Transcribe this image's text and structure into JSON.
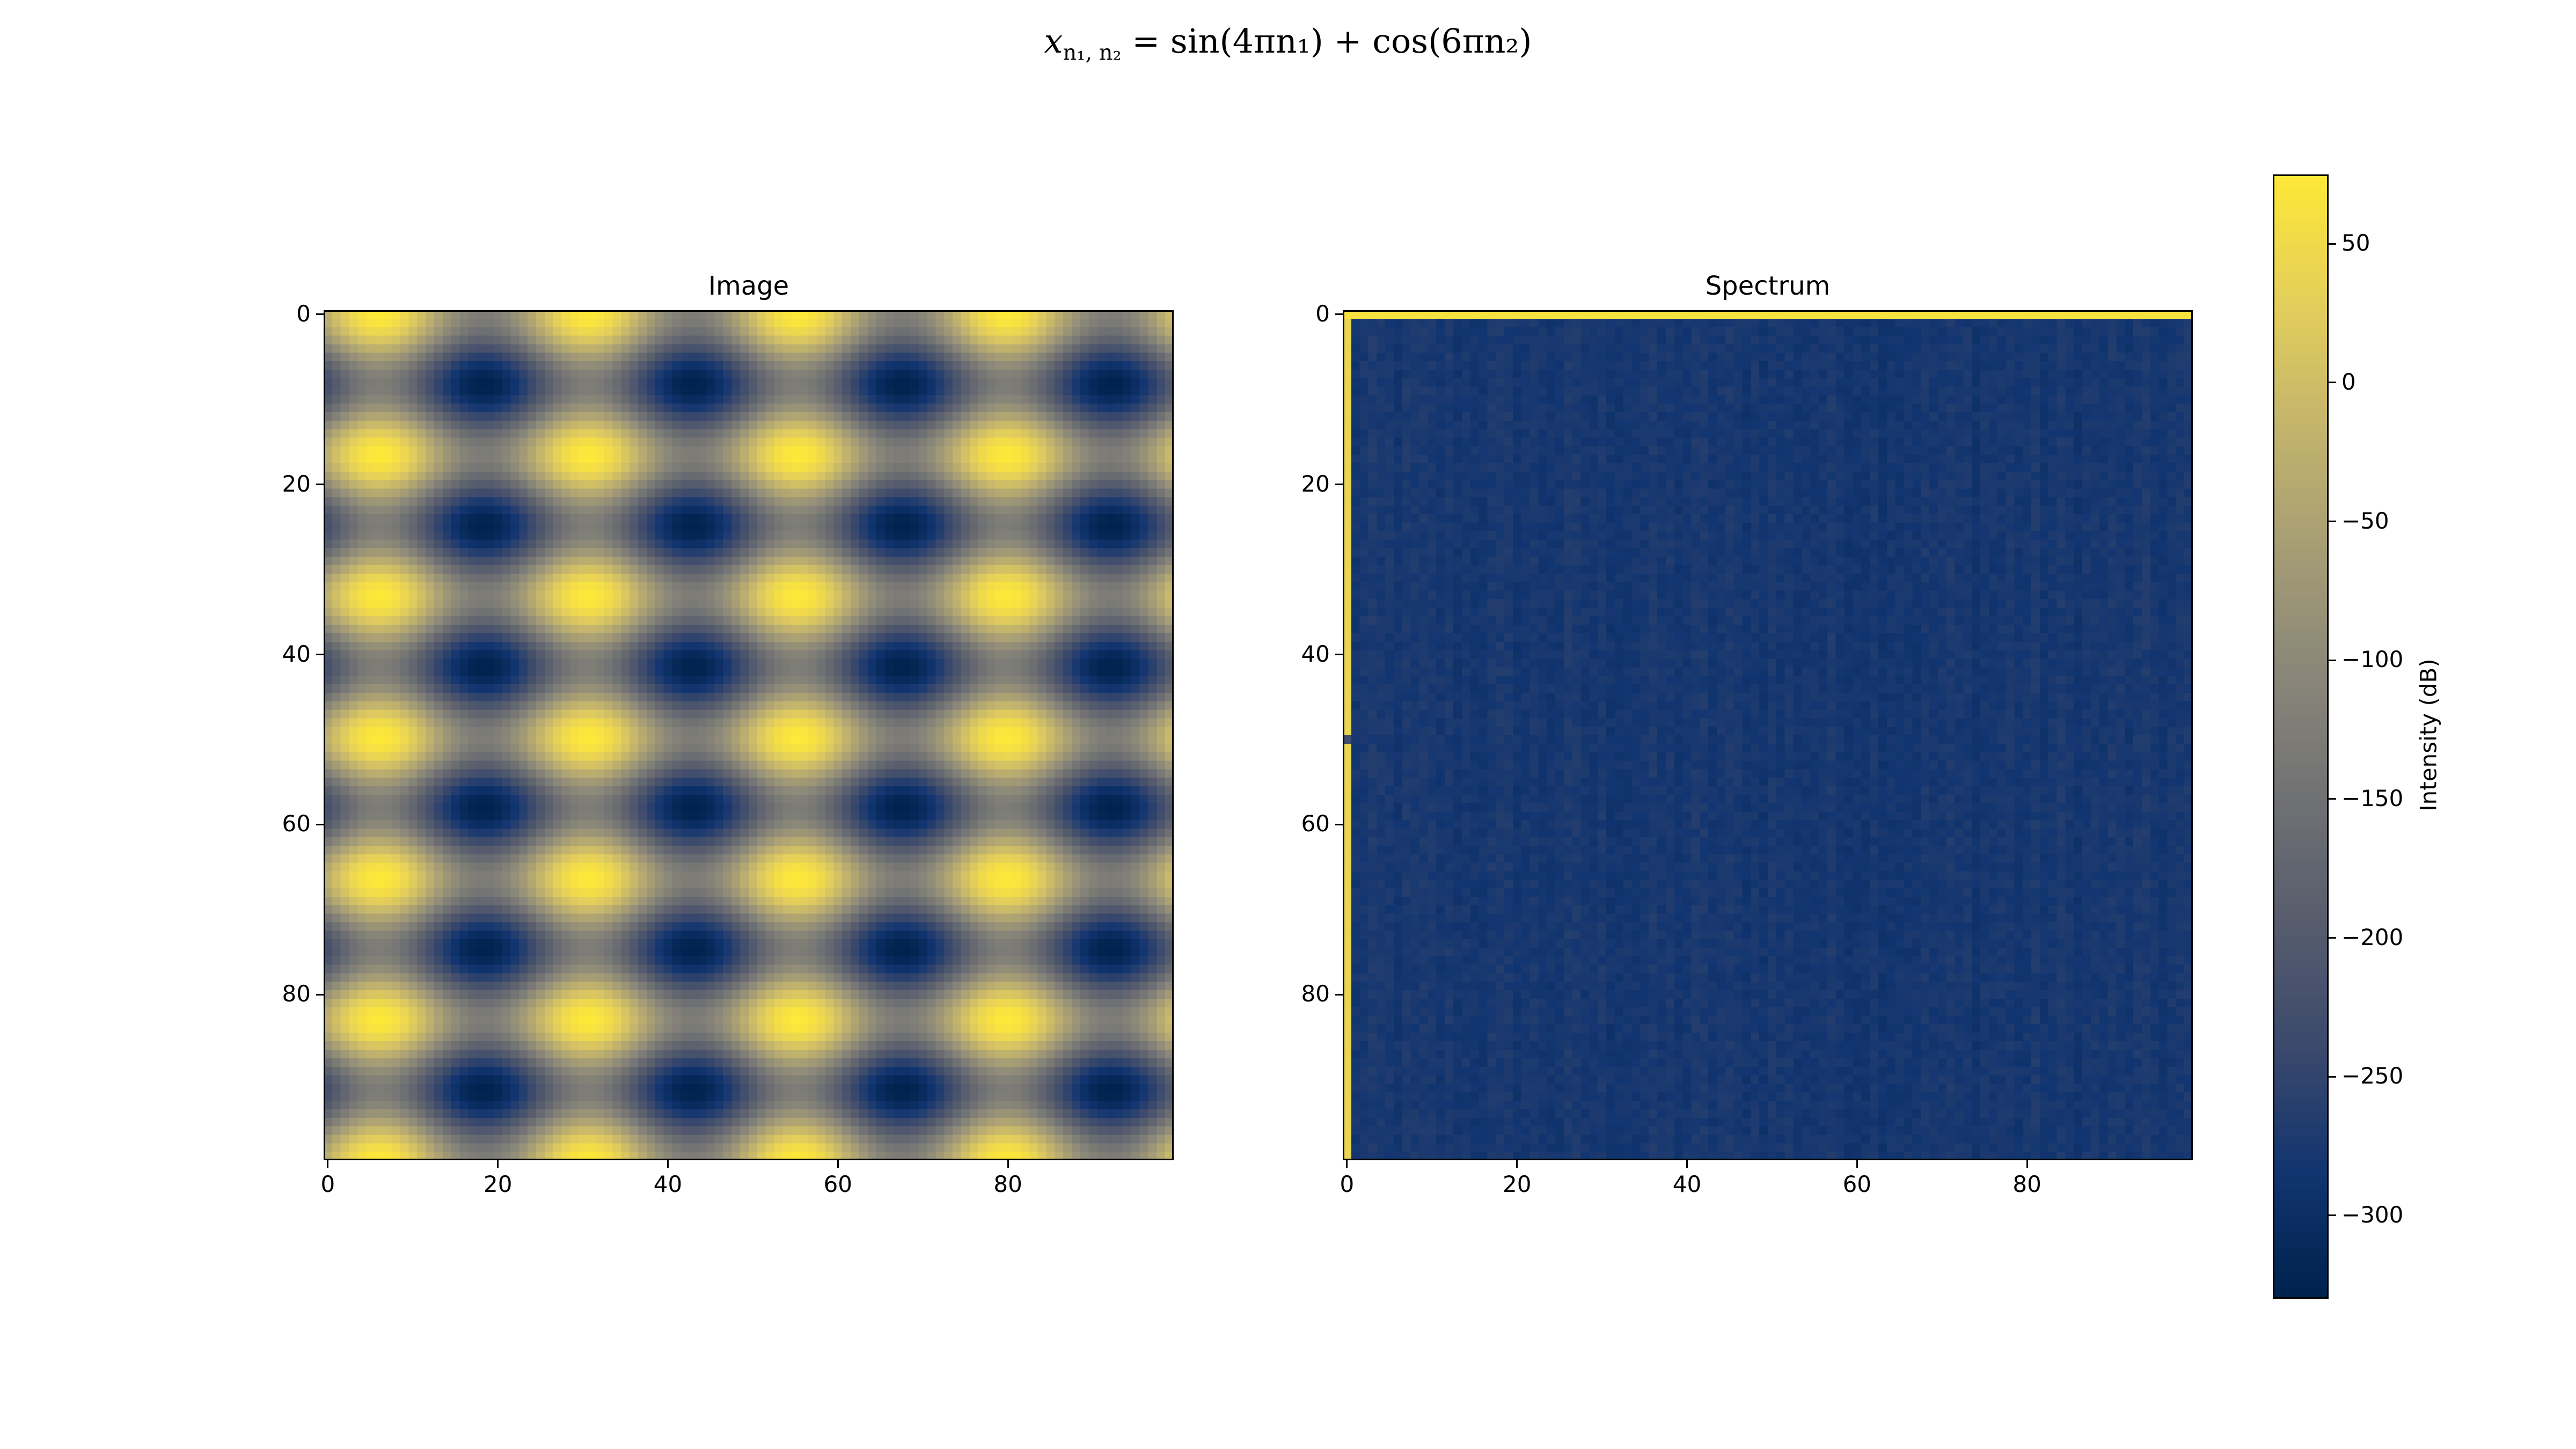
{
  "suptitle": {
    "lhs": "x",
    "lhs_sub": "n₁, n₂",
    "rhs": "= sin(4πn₁) + cos(6πn₂)"
  },
  "chart_data": [
    {
      "type": "heatmap",
      "title": "Image",
      "grid": false,
      "size": [
        100,
        100
      ],
      "function": "sin(4πn₁) + cos(6πn₂)",
      "x_ticks": [
        "0",
        "20",
        "40",
        "60",
        "80"
      ],
      "y_ticks": [
        "0",
        "20",
        "40",
        "60",
        "80"
      ],
      "xlim": [
        -0.5,
        99.5
      ],
      "ylim": [
        99.5,
        -0.5
      ],
      "colormap": "cividis"
    },
    {
      "type": "heatmap",
      "title": "Spectrum",
      "grid": false,
      "size": [
        100,
        100
      ],
      "x_ticks": [
        "0",
        "20",
        "40",
        "60",
        "80"
      ],
      "y_ticks": [
        "0",
        "20",
        "40",
        "60",
        "80"
      ],
      "xlim": [
        -0.5,
        99.5
      ],
      "ylim": [
        99.5,
        -0.5
      ],
      "colormap": "cividis",
      "notes_values": {
        "first_row_db": 65,
        "first_column_db": 40,
        "background_db": -280,
        "dip_row": 50
      }
    }
  ],
  "colorbar": {
    "label": "Intensity (dB)",
    "range": [
      -330,
      75
    ],
    "ticks": [
      {
        "value": 50,
        "label": "50"
      },
      {
        "value": 0,
        "label": "0"
      },
      {
        "value": -50,
        "label": "−50"
      },
      {
        "value": -100,
        "label": "−100"
      },
      {
        "value": -150,
        "label": "−150"
      },
      {
        "value": -200,
        "label": "−200"
      },
      {
        "value": -250,
        "label": "−250"
      },
      {
        "value": -300,
        "label": "−300"
      }
    ]
  },
  "colors": {
    "cividis_stops": [
      "#00224e",
      "#123570",
      "#3b496c",
      "#575d6d",
      "#707173",
      "#8a8779",
      "#a69d75",
      "#c4b56c",
      "#e4cf5b",
      "#fee838"
    ]
  }
}
